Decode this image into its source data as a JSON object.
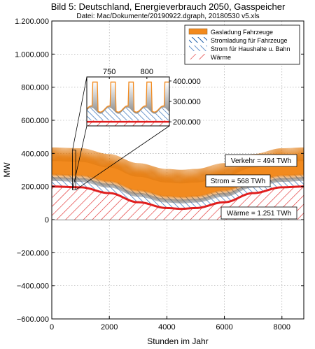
{
  "chart_data": {
    "type": "area",
    "title": "Bild 5: Deutschland, Energieverbrauch 2050, Gasspeicher",
    "subtitle": "Datei: Mac/Dokumente/20190922.dgraph, 20180530 v5.xls",
    "xlabel": "Stunden im Jahr",
    "ylabel": "MW",
    "xlim": [
      0,
      8760
    ],
    "ylim": [
      -600000,
      1200000
    ],
    "xticks": [
      0,
      2000,
      4000,
      6000,
      8000
    ],
    "xtick_labels": [
      "0",
      "2000",
      "4000",
      "6000",
      "8000"
    ],
    "yticks": [
      -600000,
      -400000,
      -200000,
      0,
      200000,
      400000,
      600000,
      800000,
      1000000,
      1200000
    ],
    "ytick_labels": [
      "−600.000",
      "−400.000",
      "−200.000",
      "0",
      "200.000",
      "400.000",
      "600.000",
      "800.000",
      "1.000.000",
      "1.200.000"
    ],
    "grid": true,
    "legend_position": "top-right",
    "legend": [
      {
        "name": "Gasladung Fahrzeuge",
        "color": "#f28a1e"
      },
      {
        "name": "Stromladung für Fahrzeuge",
        "color": "#1f5fa8"
      },
      {
        "name": "Strom für Haushalte u. Bahn",
        "color": "#4a7fc0"
      },
      {
        "name": "Wärme",
        "color": "#e01e1e"
      }
    ],
    "series": [
      {
        "name": "Wärme",
        "x": [
          0,
          1000,
          2000,
          3000,
          4000,
          4500,
          5000,
          6000,
          7000,
          8000,
          8760
        ],
        "values": [
          200000,
          195000,
          160000,
          105000,
          70000,
          65000,
          70000,
          105000,
          160000,
          195000,
          200000
        ]
      },
      {
        "name": "Strom für Haushalte u. Bahn",
        "x": [
          0,
          1000,
          2000,
          3000,
          4000,
          4500,
          5000,
          6000,
          7000,
          8000,
          8760
        ],
        "values": [
          45000,
          45000,
          45000,
          45000,
          45000,
          45000,
          45000,
          45000,
          45000,
          45000,
          45000
        ]
      },
      {
        "name": "Stromladung für Fahrzeuge",
        "x": [
          0,
          1000,
          2000,
          3000,
          4000,
          4500,
          5000,
          6000,
          7000,
          8000,
          8760
        ],
        "values": [
          15000,
          15000,
          15000,
          15000,
          15000,
          15000,
          15000,
          15000,
          15000,
          15000,
          15000
        ]
      },
      {
        "name": "Gasladung Fahrzeuge",
        "x": [
          0,
          1000,
          2000,
          3000,
          4000,
          4500,
          5000,
          6000,
          7000,
          8000,
          8760
        ],
        "values": [
          135000,
          135000,
          135000,
          135000,
          135000,
          135000,
          135000,
          135000,
          135000,
          135000,
          135000
        ]
      }
    ],
    "annotations": [
      {
        "text": "Verkehr = 494 TWh"
      },
      {
        "text": "Strom = 568 TWh"
      },
      {
        "text": "Wärme = 1.251 TWh"
      }
    ],
    "inset": {
      "xlim": [
        720,
        830
      ],
      "ylim": [
        180000,
        420000
      ],
      "xticks": [
        750,
        800
      ],
      "xtick_labels": [
        "750",
        "800"
      ],
      "yticks": [
        200000,
        300000,
        400000
      ],
      "ytick_labels": [
        "200.000",
        "300.000",
        "400.000"
      ]
    }
  }
}
